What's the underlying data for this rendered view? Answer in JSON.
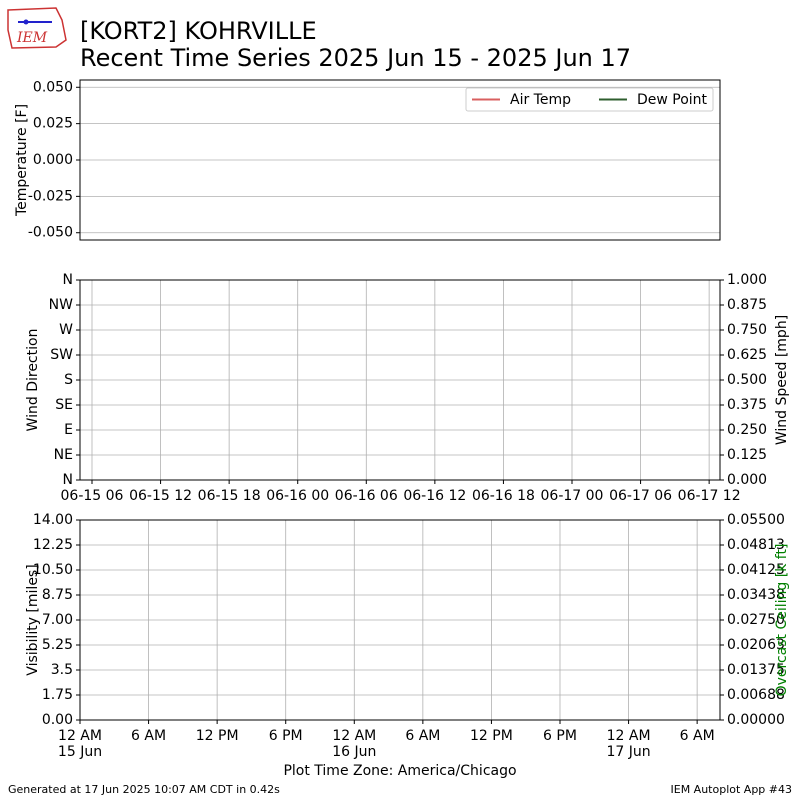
{
  "header": {
    "logo": "IEM",
    "title": "[KORT2] KOHRVILLE",
    "subtitle": "Recent Time Series 2025 Jun 15 - 2025 Jun 17"
  },
  "footer": {
    "left": "Generated at 17 Jun 2025 10:07 AM CDT in 0.42s",
    "right": "IEM Autoplot App #43"
  },
  "chart_data": [
    {
      "type": "line",
      "ylabel": "Temperature [F]",
      "x": [],
      "series": [
        {
          "name": "Air Temp",
          "color": "#d95f5f",
          "values": []
        },
        {
          "name": "Dew Point",
          "color": "#2e5e2e",
          "values": []
        }
      ],
      "ylim": [
        -0.055,
        0.055
      ],
      "yticks": [
        {
          "value": -0.05,
          "label": "-0.050"
        },
        {
          "value": -0.025,
          "label": "-0.025"
        },
        {
          "value": 0,
          "label": "0.000"
        },
        {
          "value": 0.025,
          "label": "0.025"
        },
        {
          "value": 0.05,
          "label": "0.050"
        }
      ],
      "grid": "y",
      "legend": "upper right"
    },
    {
      "type": "line",
      "ylabel": "Wind Direction",
      "y2label": "Wind Speed [mph]",
      "xlim": [
        "06-15 04:57",
        "06-17 12:57"
      ],
      "xticks": [
        "06-15 06",
        "06-15 12",
        "06-15 18",
        "06-16 00",
        "06-16 06",
        "06-16 12",
        "06-16 18",
        "06-17 00",
        "06-17 06",
        "06-17 12"
      ],
      "ylim": [
        0,
        360
      ],
      "yticks": [
        {
          "value": 0,
          "label": "N"
        },
        {
          "value": 45,
          "label": "NE"
        },
        {
          "value": 90,
          "label": "E"
        },
        {
          "value": 135,
          "label": "SE"
        },
        {
          "value": 180,
          "label": "S"
        },
        {
          "value": 225,
          "label": "SW"
        },
        {
          "value": 270,
          "label": "W"
        },
        {
          "value": 315,
          "label": "NW"
        },
        {
          "value": 360,
          "label": "N"
        }
      ],
      "y2lim": [
        0,
        1
      ],
      "y2ticks": [
        {
          "value": 0,
          "label": "0.000"
        },
        {
          "value": 0.125,
          "label": "0.125"
        },
        {
          "value": 0.25,
          "label": "0.250"
        },
        {
          "value": 0.375,
          "label": "0.375"
        },
        {
          "value": 0.5,
          "label": "0.500"
        },
        {
          "value": 0.625,
          "label": "0.625"
        },
        {
          "value": 0.75,
          "label": "0.750"
        },
        {
          "value": 0.875,
          "label": "0.875"
        },
        {
          "value": 1,
          "label": "1.000"
        }
      ],
      "grid": "both"
    },
    {
      "type": "line",
      "ylabel": "Visibility [miles]",
      "y2label": "Overcast Ceiling [k ft]",
      "y2color": "#008000",
      "xlabel": "Plot Time Zone: America/Chicago",
      "xlim": [
        "06-15 00:00",
        "06-17 08:00"
      ],
      "xticks": [
        {
          "value": "06-15 00",
          "label": "12 AM\n15 Jun"
        },
        {
          "value": "06-15 06",
          "label": "6 AM"
        },
        {
          "value": "06-15 12",
          "label": "12 PM"
        },
        {
          "value": "06-15 18",
          "label": "6 PM"
        },
        {
          "value": "06-16 00",
          "label": "12 AM\n16 Jun"
        },
        {
          "value": "06-16 06",
          "label": "6 AM"
        },
        {
          "value": "06-16 12",
          "label": "12 PM"
        },
        {
          "value": "06-16 18",
          "label": "6 PM"
        },
        {
          "value": "06-17 00",
          "label": "12 AM\n17 Jun"
        },
        {
          "value": "06-17 06",
          "label": "6 AM"
        }
      ],
      "ylim": [
        0,
        14
      ],
      "yticks": [
        {
          "value": 0,
          "label": "0.00"
        },
        1.75,
        3.5,
        5.25,
        {
          "value": 7,
          "label": "7.00"
        },
        8.75,
        {
          "value": 10.5,
          "label": "10.50"
        },
        12.25,
        {
          "value": 14,
          "label": "14.00"
        }
      ],
      "y2lim": [
        0,
        0.055
      ],
      "y2ticks": [
        {
          "value": 0,
          "label": "0.00000"
        },
        {
          "value": 0.006875,
          "label": "0.00688"
        },
        {
          "value": 0.01375,
          "label": "0.01375"
        },
        {
          "value": 0.020625,
          "label": "0.02063"
        },
        {
          "value": 0.0275,
          "label": "0.02750"
        },
        {
          "value": 0.034375,
          "label": "0.03438"
        },
        {
          "value": 0.04125,
          "label": "0.04125"
        },
        {
          "value": 0.048125,
          "label": "0.04813"
        },
        {
          "value": 0.055,
          "label": "0.05500"
        }
      ],
      "grid": "both"
    }
  ]
}
